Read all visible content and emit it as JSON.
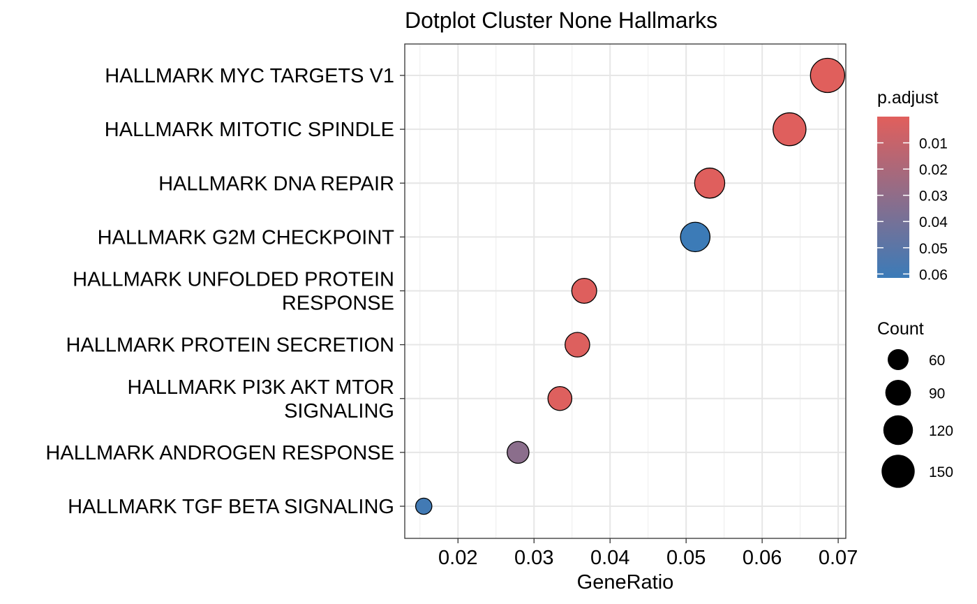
{
  "chart_data": {
    "type": "scatter",
    "title": "Dotplot Cluster None Hallmarks",
    "xlabel": "GeneRatio",
    "ylabel": "",
    "xlim": [
      0.013,
      0.071
    ],
    "xticks": [
      0.02,
      0.03,
      0.04,
      0.05,
      0.06,
      0.07
    ],
    "xtick_labels": [
      "0.02",
      "0.03",
      "0.04",
      "0.05",
      "0.06",
      "0.07"
    ],
    "grid": true,
    "legend_position": "right",
    "points": [
      {
        "term": [
          "HALLMARK MYC TARGETS V1"
        ],
        "gene_ratio": 0.0686,
        "count": 160,
        "p_adjust": 0.0003
      },
      {
        "term": [
          "HALLMARK MITOTIC SPINDLE"
        ],
        "gene_ratio": 0.0636,
        "count": 148,
        "p_adjust": 0.0008
      },
      {
        "term": [
          "HALLMARK DNA REPAIR"
        ],
        "gene_ratio": 0.0531,
        "count": 124,
        "p_adjust": 0.0006
      },
      {
        "term": [
          "HALLMARK G2M CHECKPOINT"
        ],
        "gene_ratio": 0.0512,
        "count": 119,
        "p_adjust": 0.061
      },
      {
        "term": [
          "HALLMARK UNFOLDED PROTEIN",
          "RESPONSE"
        ],
        "gene_ratio": 0.0366,
        "count": 85,
        "p_adjust": 0.001
      },
      {
        "term": [
          "HALLMARK PROTEIN SECRETION"
        ],
        "gene_ratio": 0.0357,
        "count": 83,
        "p_adjust": 0.0015
      },
      {
        "term": [
          "HALLMARK PI3K AKT MTOR",
          "SIGNALING"
        ],
        "gene_ratio": 0.0334,
        "count": 78,
        "p_adjust": 0.0012
      },
      {
        "term": [
          "HALLMARK ANDROGEN RESPONSE"
        ],
        "gene_ratio": 0.0279,
        "count": 65,
        "p_adjust": 0.032
      },
      {
        "term": [
          "HALLMARK TGF BETA SIGNALING"
        ],
        "gene_ratio": 0.0155,
        "count": 36,
        "p_adjust": 0.059
      }
    ],
    "color_legend": {
      "title": "p.adjust",
      "low_color": "#e15f5c",
      "high_color": "#3b7bb8",
      "range": [
        0.0,
        0.0615
      ],
      "ticks": [
        0.01,
        0.02,
        0.03,
        0.04,
        0.05,
        0.06
      ],
      "tick_labels": [
        "0.01",
        "0.02",
        "0.03",
        "0.04",
        "0.05",
        "0.06"
      ]
    },
    "size_legend": {
      "title": "Count",
      "values": [
        60,
        90,
        120,
        150
      ],
      "labels": [
        "60",
        "90",
        "120",
        "150"
      ]
    }
  }
}
